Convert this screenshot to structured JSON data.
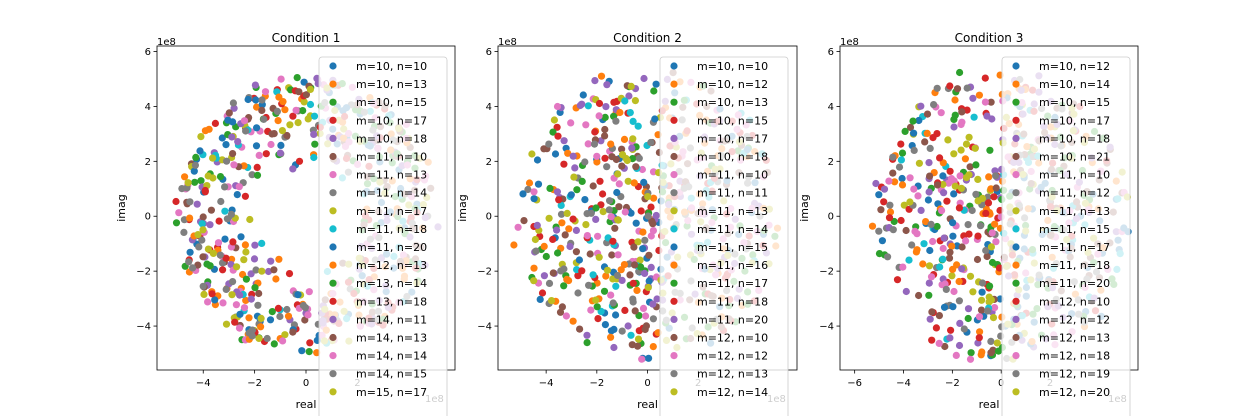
{
  "palette": [
    "#1f77b4",
    "#ff7f0e",
    "#2ca02c",
    "#d62728",
    "#9467bd",
    "#8c564b",
    "#e377c2",
    "#7f7f7f",
    "#bcbd22",
    "#17becf"
  ],
  "chart_data": [
    {
      "type": "scatter",
      "title": "Condition 1",
      "xlabel": "real",
      "ylabel": "imag",
      "x_multiplier_text": "1e8",
      "y_multiplier_text": "1e8",
      "xlim": [
        -5.8,
        5.8
      ],
      "ylim": [
        -5.6,
        6.2
      ],
      "xticks": [
        -4,
        -2,
        0,
        2
      ],
      "yticks": [
        -4,
        -2,
        0,
        2,
        4,
        6
      ],
      "ring": {
        "inner_radius": 1.7,
        "outer_radius": 5.0
      },
      "legend_location": "right, overlapping plot",
      "series": [
        {
          "name": "m=10, n=10"
        },
        {
          "name": "m=10, n=13"
        },
        {
          "name": "m=10, n=15"
        },
        {
          "name": "m=10, n=17"
        },
        {
          "name": "m=10, n=18"
        },
        {
          "name": "m=11, n=10"
        },
        {
          "name": "m=11, n=13"
        },
        {
          "name": "m=11, n=14"
        },
        {
          "name": "m=11, n=17"
        },
        {
          "name": "m=11, n=18"
        },
        {
          "name": "m=11, n=20"
        },
        {
          "name": "m=12, n=13"
        },
        {
          "name": "m=13, n=14"
        },
        {
          "name": "m=13, n=18"
        },
        {
          "name": "m=14, n=11"
        },
        {
          "name": "m=14, n=13"
        },
        {
          "name": "m=14, n=14"
        },
        {
          "name": "m=14, n=15"
        },
        {
          "name": "m=15, n=17"
        }
      ]
    },
    {
      "type": "scatter",
      "title": "Condition 2",
      "xlabel": "real",
      "ylabel": "imag",
      "x_multiplier_text": "1e8",
      "y_multiplier_text": "1e8",
      "xlim": [
        -5.9,
        5.9
      ],
      "ylim": [
        -5.6,
        6.2
      ],
      "xticks": [
        -4,
        -2,
        0,
        2
      ],
      "yticks": [
        -4,
        -2,
        0,
        2,
        4,
        6
      ],
      "ring": {
        "inner_radius": 0.0,
        "outer_radius": 5.2
      },
      "legend_location": "right, overlapping plot",
      "series": [
        {
          "name": "m=10, n=10"
        },
        {
          "name": "m=10, n=12"
        },
        {
          "name": "m=10, n=13"
        },
        {
          "name": "m=10, n=15"
        },
        {
          "name": "m=10, n=17"
        },
        {
          "name": "m=10, n=18"
        },
        {
          "name": "m=11, n=10"
        },
        {
          "name": "m=11, n=11"
        },
        {
          "name": "m=11, n=13"
        },
        {
          "name": "m=11, n=14"
        },
        {
          "name": "m=11, n=15"
        },
        {
          "name": "m=11, n=16"
        },
        {
          "name": "m=11, n=17"
        },
        {
          "name": "m=11, n=18"
        },
        {
          "name": "m=11, n=20"
        },
        {
          "name": "m=12, n=10"
        },
        {
          "name": "m=12, n=12"
        },
        {
          "name": "m=12, n=13"
        },
        {
          "name": "m=12, n=14"
        }
      ]
    },
    {
      "type": "scatter",
      "title": "Condition 3",
      "xlabel": "real",
      "ylabel": "imag",
      "x_multiplier_text": "1e8",
      "y_multiplier_text": "1e8",
      "xlim": [
        -6.6,
        5.6
      ],
      "ylim": [
        -5.6,
        6.2
      ],
      "xticks": [
        -6,
        -4,
        -2,
        0,
        2
      ],
      "yticks": [
        -4,
        -2,
        0,
        2,
        4,
        6
      ],
      "ring": {
        "inner_radius": 0.0,
        "outer_radius": 5.2
      },
      "legend_location": "right, overlapping plot",
      "series": [
        {
          "name": "m=10, n=12"
        },
        {
          "name": "m=10, n=14"
        },
        {
          "name": "m=10, n=15"
        },
        {
          "name": "m=10, n=17"
        },
        {
          "name": "m=10, n=18"
        },
        {
          "name": "m=10, n=21"
        },
        {
          "name": "m=11, n=10"
        },
        {
          "name": "m=11, n=12"
        },
        {
          "name": "m=11, n=13"
        },
        {
          "name": "m=11, n=15"
        },
        {
          "name": "m=11, n=17"
        },
        {
          "name": "m=11, n=18"
        },
        {
          "name": "m=11, n=20"
        },
        {
          "name": "m=12, n=10"
        },
        {
          "name": "m=12, n=12"
        },
        {
          "name": "m=12, n=13"
        },
        {
          "name": "m=12, n=18"
        },
        {
          "name": "m=12, n=19"
        },
        {
          "name": "m=12, n=20"
        }
      ]
    }
  ]
}
